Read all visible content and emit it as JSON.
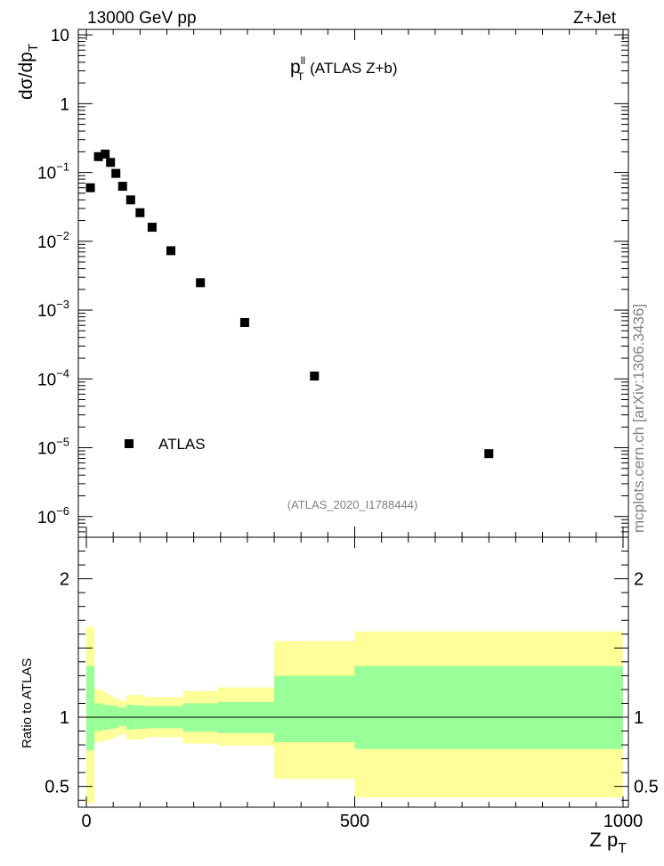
{
  "header": {
    "left_label": "13000 GeV pp",
    "right_label": "Z+Jet"
  },
  "side_credit": "mcplots.cern.ch [arXiv:1306.3436]",
  "chart_data": [
    {
      "type": "scatter",
      "title_main": "p",
      "title_sup": "ll",
      "title_sub": "T",
      "title_rest": " (ATLAS Z+b)",
      "ylabel_main": "dσ/dp",
      "ylabel_sub": "T",
      "yscale": "log",
      "ylim": [
        5e-07,
        12
      ],
      "xlim": [
        -15,
        1010
      ],
      "ytick_labels": [
        {
          "value": 10,
          "main": "10",
          "exp": ""
        },
        {
          "value": 1,
          "main": "1",
          "exp": ""
        },
        {
          "value": 0.1,
          "main": "10",
          "exp": "−1"
        },
        {
          "value": 0.01,
          "main": "10",
          "exp": "−2"
        },
        {
          "value": 0.001,
          "main": "10",
          "exp": "−3"
        },
        {
          "value": 0.0001,
          "main": "10",
          "exp": "−4"
        },
        {
          "value": 1e-05,
          "main": "10",
          "exp": "−5"
        },
        {
          "value": 1e-06,
          "main": "10",
          "exp": "−6"
        }
      ],
      "legend": {
        "label": "ATLAS",
        "placement": "bottom-left"
      },
      "annotation": "(ATLAS_2020_I1788444)",
      "series": [
        {
          "name": "ATLAS",
          "color": "#000000",
          "points": [
            {
              "x": 7.5,
              "y": 0.06
            },
            {
              "x": 22.5,
              "y": 0.17
            },
            {
              "x": 35,
              "y": 0.185
            },
            {
              "x": 45,
              "y": 0.14
            },
            {
              "x": 55,
              "y": 0.097
            },
            {
              "x": 67.5,
              "y": 0.063
            },
            {
              "x": 82.5,
              "y": 0.04
            },
            {
              "x": 100,
              "y": 0.026
            },
            {
              "x": 122.5,
              "y": 0.016
            },
            {
              "x": 157.5,
              "y": 0.0073
            },
            {
              "x": 212.5,
              "y": 0.0025
            },
            {
              "x": 295,
              "y": 0.00066
            },
            {
              "x": 425,
              "y": 0.00011
            },
            {
              "x": 750,
              "y": 8.2e-06
            }
          ]
        }
      ]
    },
    {
      "type": "area",
      "ylabel": "Ratio to ATLAS",
      "xlabel_main": "Z p",
      "xlabel_sub": "T",
      "ylim": [
        0.35,
        2.3
      ],
      "xlim": [
        -15,
        1010
      ],
      "yticks": [
        0.5,
        1,
        2
      ],
      "ytick_labels": [
        "0.5",
        "1",
        "2"
      ],
      "xticks": [
        0,
        500,
        1000
      ],
      "xtick_labels": [
        "0",
        "500",
        "1000"
      ],
      "reference_line": 1,
      "bands": [
        {
          "name": "inner",
          "color": "#99ff99"
        },
        {
          "name": "outer",
          "color": "#ffff99"
        }
      ],
      "bins": [
        {
          "x0": 0,
          "x1": 15,
          "in_lo": 0.76,
          "in_hi": 1.37,
          "out_lo": 0.38,
          "out_hi": 1.65
        },
        {
          "x0": 15,
          "x1": 30,
          "in_lo": 0.9,
          "in_hi": 1.1,
          "out_lo": 0.82,
          "out_hi": 1.2
        },
        {
          "x0": 30,
          "x1": 40,
          "in_lo": 0.91,
          "in_hi": 1.09,
          "out_lo": 0.83,
          "out_hi": 1.18
        },
        {
          "x0": 40,
          "x1": 50,
          "in_lo": 0.915,
          "in_hi": 1.085,
          "out_lo": 0.84,
          "out_hi": 1.16
        },
        {
          "x0": 50,
          "x1": 60,
          "in_lo": 0.92,
          "in_hi": 1.08,
          "out_lo": 0.855,
          "out_hi": 1.14
        },
        {
          "x0": 60,
          "x1": 75,
          "in_lo": 0.935,
          "in_hi": 1.07,
          "out_lo": 0.875,
          "out_hi": 1.12
        },
        {
          "x0": 75,
          "x1": 90,
          "in_lo": 0.91,
          "in_hi": 1.09,
          "out_lo": 0.84,
          "out_hi": 1.16
        },
        {
          "x0": 90,
          "x1": 110,
          "in_lo": 0.915,
          "in_hi": 1.085,
          "out_lo": 0.84,
          "out_hi": 1.16
        },
        {
          "x0": 110,
          "x1": 135,
          "in_lo": 0.92,
          "in_hi": 1.08,
          "out_lo": 0.855,
          "out_hi": 1.145
        },
        {
          "x0": 135,
          "x1": 180,
          "in_lo": 0.92,
          "in_hi": 1.08,
          "out_lo": 0.855,
          "out_hi": 1.145
        },
        {
          "x0": 180,
          "x1": 245,
          "in_lo": 0.895,
          "in_hi": 1.1,
          "out_lo": 0.81,
          "out_hi": 1.19
        },
        {
          "x0": 245,
          "x1": 350,
          "in_lo": 0.885,
          "in_hi": 1.11,
          "out_lo": 0.795,
          "out_hi": 1.215
        },
        {
          "x0": 350,
          "x1": 500,
          "in_lo": 0.82,
          "in_hi": 1.3,
          "out_lo": 0.555,
          "out_hi": 1.55
        },
        {
          "x0": 500,
          "x1": 1000,
          "in_lo": 0.77,
          "in_hi": 1.37,
          "out_lo": 0.42,
          "out_hi": 1.62
        }
      ]
    }
  ]
}
